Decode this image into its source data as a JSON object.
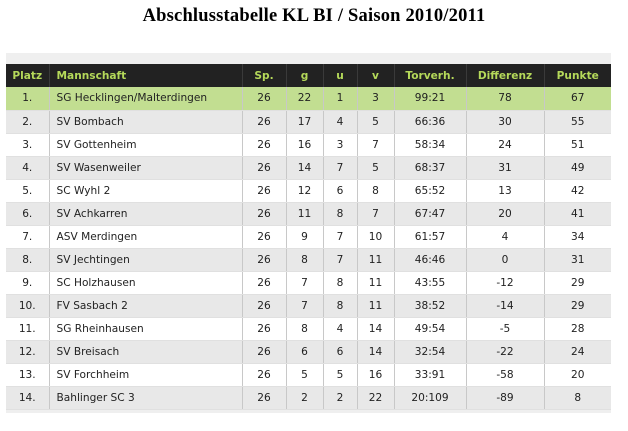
{
  "title": "Abschlusstabelle KL BI / Saison 2010/2011",
  "colors": {
    "header_bg": "#222222",
    "header_text": "#b5d95a",
    "leader_row": "#c2de91",
    "stripe_row": "#e8e8e8"
  },
  "table": {
    "headers": [
      "Platz",
      "Mannschaft",
      "Sp.",
      "g",
      "u",
      "v",
      "Torverh.",
      "Differenz",
      "Punkte"
    ],
    "rows": [
      [
        "1.",
        "SG Hecklingen/Malterdingen",
        "26",
        "22",
        "1",
        "3",
        "99:21",
        "78",
        "67"
      ],
      [
        "2.",
        "SV Bombach",
        "26",
        "17",
        "4",
        "5",
        "66:36",
        "30",
        "55"
      ],
      [
        "3.",
        "SV Gottenheim",
        "26",
        "16",
        "3",
        "7",
        "58:34",
        "24",
        "51"
      ],
      [
        "4.",
        "SV Wasenweiler",
        "26",
        "14",
        "7",
        "5",
        "68:37",
        "31",
        "49"
      ],
      [
        "5.",
        "SC Wyhl 2",
        "26",
        "12",
        "6",
        "8",
        "65:52",
        "13",
        "42"
      ],
      [
        "6.",
        "SV Achkarren",
        "26",
        "11",
        "8",
        "7",
        "67:47",
        "20",
        "41"
      ],
      [
        "7.",
        "ASV Merdingen",
        "26",
        "9",
        "7",
        "10",
        "61:57",
        "4",
        "34"
      ],
      [
        "8.",
        "SV Jechtingen",
        "26",
        "8",
        "7",
        "11",
        "46:46",
        "0",
        "31"
      ],
      [
        "9.",
        "SC Holzhausen",
        "26",
        "7",
        "8",
        "11",
        "43:55",
        "-12",
        "29"
      ],
      [
        "10.",
        "FV Sasbach 2",
        "26",
        "7",
        "8",
        "11",
        "38:52",
        "-14",
        "29"
      ],
      [
        "11.",
        "SG Rheinhausen",
        "26",
        "8",
        "4",
        "14",
        "49:54",
        "-5",
        "28"
      ],
      [
        "12.",
        "SV Breisach",
        "26",
        "6",
        "6",
        "14",
        "32:54",
        "-22",
        "24"
      ],
      [
        "13.",
        "SV Forchheim",
        "26",
        "5",
        "5",
        "16",
        "33:91",
        "-58",
        "20"
      ],
      [
        "14.",
        "Bahlinger SC 3",
        "26",
        "2",
        "2",
        "22",
        "20:109",
        "-89",
        "8"
      ]
    ]
  }
}
